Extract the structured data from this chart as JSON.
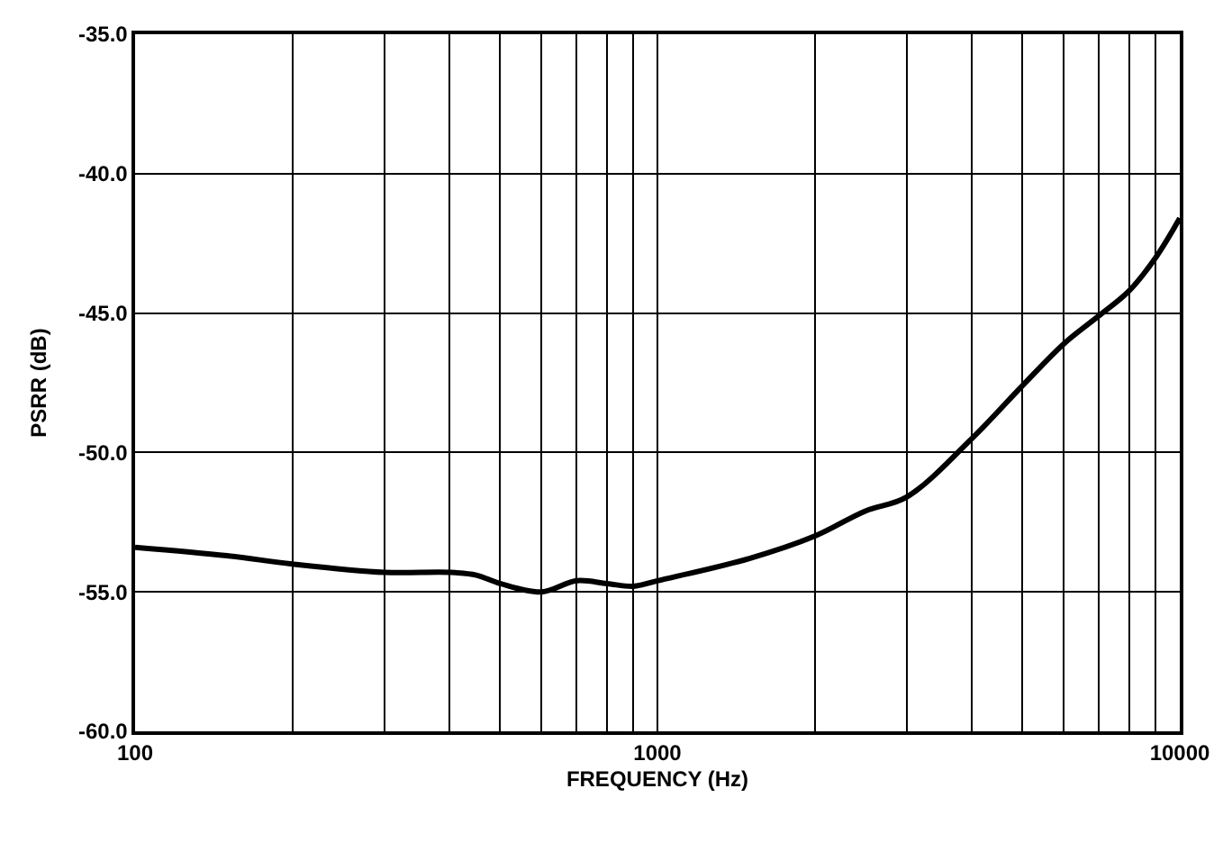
{
  "chart_data": {
    "type": "line",
    "xlabel": "FREQUENCY (Hz)",
    "ylabel": "PSRR (dB)",
    "log": "x",
    "grid": true,
    "legend": false,
    "marker": "none",
    "line_style": "solid",
    "xlim": [
      100,
      10000
    ],
    "ylim": [
      -60,
      -35
    ],
    "xticks": [
      100,
      {
        "value": 200,
        "label": null
      },
      {
        "value": 300,
        "label": null
      },
      {
        "value": 400,
        "label": null
      },
      {
        "value": 500,
        "label": null
      },
      {
        "value": 600,
        "label": null
      },
      {
        "value": 700,
        "label": null
      },
      {
        "value": 800,
        "label": null
      },
      {
        "value": 900,
        "label": null
      },
      1000,
      {
        "value": 2000,
        "label": null
      },
      {
        "value": 3000,
        "label": null
      },
      {
        "value": 4000,
        "label": null
      },
      {
        "value": 5000,
        "label": null
      },
      {
        "value": 6000,
        "label": null
      },
      {
        "value": 7000,
        "label": null
      },
      {
        "value": 8000,
        "label": null
      },
      {
        "value": 9000,
        "label": null
      },
      10000
    ],
    "yticks": [
      {
        "value": -60,
        "label": "-60.0"
      },
      {
        "value": -55,
        "label": "-55.0"
      },
      {
        "value": -50,
        "label": "-50.0"
      },
      {
        "value": -45,
        "label": "-45.0"
      },
      {
        "value": -40,
        "label": "-40.0"
      },
      {
        "value": -35,
        "label": "-35.0"
      }
    ],
    "x": [
      100,
      150,
      200,
      300,
      400,
      450,
      500,
      600,
      700,
      800,
      900,
      1000,
      1500,
      2000,
      2500,
      3000,
      4000,
      5000,
      6000,
      7000,
      8000,
      9000,
      10000
    ],
    "series": [
      {
        "color": "#000000",
        "values": [
          -53.4,
          -53.7,
          -54.0,
          -54.3,
          -54.3,
          -54.4,
          -54.7,
          -55.0,
          -54.6,
          -54.7,
          -54.8,
          -54.6,
          -53.8,
          -53.0,
          -52.1,
          -51.6,
          -49.5,
          -47.6,
          -46.1,
          -45.1,
          -44.2,
          -43.0,
          -41.6
        ]
      }
    ]
  }
}
